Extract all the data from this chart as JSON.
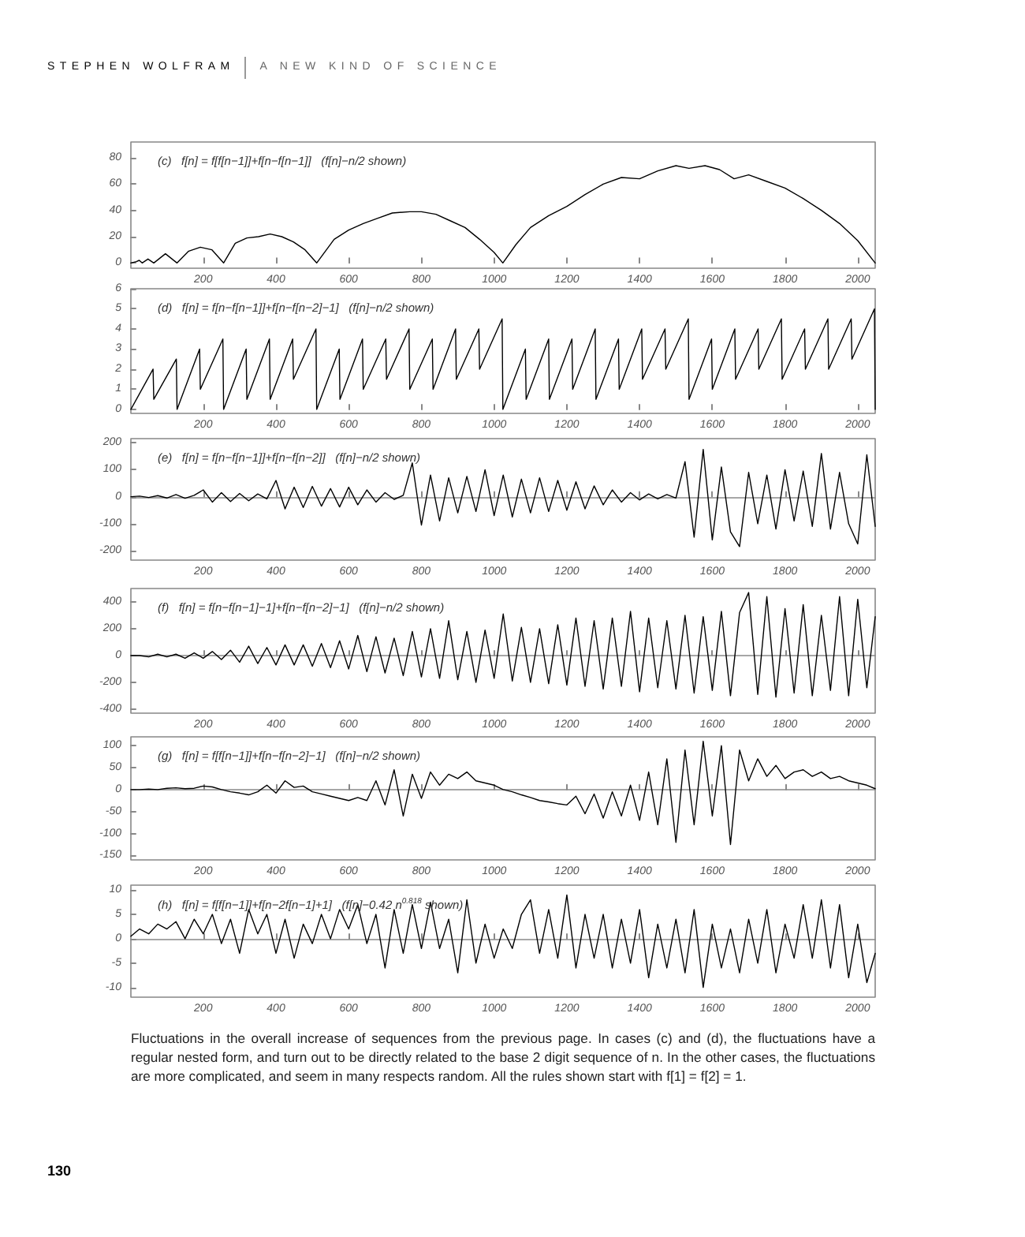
{
  "chart_data": [
    {
      "type": "line",
      "title": "(c)   f[n] = f[f[n−1]]+f[n−f[n−1]]   (f[n]−n/2 shown)",
      "annotations": [
        "STEPHEN WOLFRAM",
        "A NEW KIND OF SCIENCE"
      ],
      "color": "#000000",
      "marker": "none",
      "line_style": "solid",
      "grid": false,
      "xlim": [
        1,
        2048
      ],
      "xticks": [
        200,
        400,
        600,
        800,
        1000,
        1200,
        1400,
        1600,
        1800,
        2000
      ],
      "ylim": [
        -4,
        92
      ],
      "yticks": [
        0,
        20,
        40,
        60,
        80
      ],
      "x": [
        1,
        16,
        24,
        32,
        48,
        64,
        96,
        128,
        160,
        192,
        224,
        256,
        288,
        320,
        352,
        384,
        416,
        448,
        480,
        512,
        560,
        600,
        640,
        680,
        720,
        768,
        800,
        840,
        880,
        920,
        960,
        1000,
        1024,
        1060,
        1100,
        1150,
        1200,
        1250,
        1300,
        1350,
        1400,
        1450,
        1500,
        1536,
        1580,
        1620,
        1660,
        1700,
        1750,
        1800,
        1850,
        1900,
        1950,
        2000,
        2048
      ],
      "values": [
        0,
        1,
        2,
        0,
        3,
        0,
        7,
        0,
        9,
        12,
        10,
        0,
        15,
        19,
        20,
        22,
        20,
        16,
        10,
        0,
        18,
        25,
        30,
        34,
        38,
        39,
        39,
        37,
        32,
        27,
        18,
        8,
        0,
        14,
        27,
        36,
        43,
        52,
        60,
        65,
        64,
        70,
        74,
        72,
        74,
        71,
        64,
        67,
        62,
        57,
        49,
        40,
        30,
        17,
        0
      ]
    },
    {
      "type": "line",
      "title": "(d)   f[n] = f[n−f[n−1]]+f[n−f[n−2]−1]   (f[n]−n/2 shown)",
      "color": "#000000",
      "marker": "none",
      "line_style": "solid",
      "grid": false,
      "xlim": [
        1,
        2048
      ],
      "xticks": [
        200,
        400,
        600,
        800,
        1000,
        1200,
        1400,
        1600,
        1800,
        2000
      ],
      "ylim": [
        -0.2,
        6
      ],
      "yticks": [
        0,
        1,
        2,
        3,
        4,
        5,
        6
      ],
      "x": [
        1,
        62,
        64,
        126,
        128,
        190,
        192,
        254,
        256,
        318,
        320,
        382,
        384,
        446,
        448,
        510,
        512,
        574,
        576,
        638,
        640,
        702,
        704,
        766,
        768,
        830,
        832,
        894,
        896,
        958,
        960,
        1022,
        1024,
        1086,
        1088,
        1150,
        1152,
        1214,
        1216,
        1278,
        1280,
        1342,
        1344,
        1406,
        1408,
        1470,
        1472,
        1534,
        1536,
        1598,
        1600,
        1662,
        1664,
        1726,
        1728,
        1790,
        1792,
        1854,
        1856,
        1918,
        1920,
        1982,
        1984,
        2046,
        2048
      ],
      "values": [
        0,
        2,
        0.5,
        2.5,
        0,
        3,
        1,
        3.5,
        0,
        3,
        0.5,
        3.5,
        0.5,
        3.5,
        1.5,
        4,
        0,
        3,
        0.5,
        3.5,
        1,
        3.5,
        1.5,
        4,
        1,
        3.5,
        1,
        4,
        1.5,
        4,
        2,
        4.5,
        0,
        3,
        0.5,
        3.5,
        0.5,
        3.5,
        1,
        4,
        0.5,
        3.5,
        1,
        4,
        1.5,
        4,
        2,
        4.5,
        0.5,
        3.5,
        1,
        4,
        1.5,
        4,
        2,
        4.5,
        1.5,
        4,
        2,
        4.5,
        2,
        4.5,
        2.5,
        5,
        0
      ]
    },
    {
      "type": "line",
      "title": "(e)   f[n] = f[n−f[n−1]]+f[n−f[n−2]]   (f[n]−n/2 shown)",
      "color": "#000000",
      "marker": "none",
      "line_style": "solid",
      "grid": false,
      "xlim": [
        1,
        2048
      ],
      "xticks": [
        200,
        400,
        600,
        800,
        1000,
        1200,
        1400,
        1600,
        1800,
        2000
      ],
      "ylim": [
        -235,
        215
      ],
      "yticks": [
        -200,
        -100,
        0,
        100,
        200
      ],
      "ref_lines": [
        {
          "axis": "y",
          "value": 0,
          "color": "#888888"
        }
      ],
      "x": [
        1,
        25,
        50,
        75,
        100,
        125,
        150,
        175,
        200,
        225,
        250,
        275,
        300,
        325,
        350,
        375,
        400,
        425,
        450,
        475,
        500,
        525,
        550,
        575,
        600,
        625,
        650,
        675,
        700,
        725,
        750,
        775,
        800,
        825,
        850,
        875,
        900,
        925,
        950,
        975,
        1000,
        1025,
        1050,
        1075,
        1100,
        1125,
        1150,
        1175,
        1200,
        1225,
        1250,
        1275,
        1300,
        1325,
        1350,
        1375,
        1400,
        1425,
        1450,
        1475,
        1500,
        1525,
        1550,
        1575,
        1600,
        1625,
        1650,
        1675,
        1700,
        1725,
        1750,
        1775,
        1800,
        1825,
        1850,
        1875,
        1900,
        1925,
        1950,
        1975,
        2000,
        2025,
        2048
      ],
      "values": [
        0,
        2,
        -3,
        4,
        -5,
        8,
        -6,
        5,
        25,
        -20,
        15,
        -18,
        12,
        -15,
        10,
        -8,
        60,
        -45,
        35,
        -40,
        38,
        -35,
        30,
        -38,
        35,
        -30,
        25,
        -20,
        15,
        -10,
        5,
        125,
        -105,
        80,
        -90,
        70,
        -60,
        75,
        -55,
        100,
        -70,
        80,
        -75,
        65,
        -60,
        70,
        -55,
        60,
        -50,
        55,
        -45,
        40,
        -30,
        25,
        -20,
        15,
        -12,
        10,
        -8,
        8,
        -5,
        130,
        -150,
        175,
        -160,
        110,
        -130,
        -185,
        90,
        -100,
        80,
        -120,
        100,
        -90,
        95,
        -110,
        160,
        -120,
        90,
        -100,
        -175,
        155,
        -110
      ]
    },
    {
      "type": "line",
      "title": "(f)   f[n] = f[n−f[n−1]−1]+f[n−f[n−2]−1]   (f[n]−n/2 shown)",
      "color": "#000000",
      "marker": "none",
      "line_style": "solid",
      "grid": false,
      "xlim": [
        1,
        2048
      ],
      "xticks": [
        200,
        400,
        600,
        800,
        1000,
        1200,
        1400,
        1600,
        1800,
        2000
      ],
      "ylim": [
        -430,
        500
      ],
      "yticks": [
        -400,
        -200,
        0,
        200,
        400
      ],
      "ref_lines": [
        {
          "axis": "y",
          "value": 0,
          "color": "#888888"
        }
      ],
      "x": [
        1,
        25,
        50,
        75,
        100,
        125,
        150,
        175,
        200,
        225,
        250,
        275,
        300,
        325,
        350,
        375,
        400,
        425,
        450,
        475,
        500,
        525,
        550,
        575,
        600,
        625,
        650,
        675,
        700,
        725,
        750,
        775,
        800,
        825,
        850,
        875,
        900,
        925,
        950,
        975,
        1000,
        1025,
        1050,
        1075,
        1100,
        1125,
        1150,
        1175,
        1200,
        1225,
        1250,
        1275,
        1300,
        1325,
        1350,
        1375,
        1400,
        1425,
        1450,
        1475,
        1500,
        1525,
        1550,
        1575,
        1600,
        1625,
        1650,
        1675,
        1700,
        1725,
        1750,
        1775,
        1800,
        1825,
        1850,
        1875,
        1900,
        1925,
        1950,
        1975,
        2000,
        2025,
        2048
      ],
      "values": [
        0,
        0,
        -10,
        10,
        -10,
        10,
        -20,
        20,
        -20,
        30,
        -30,
        40,
        -50,
        70,
        -60,
        60,
        -70,
        80,
        -70,
        80,
        -80,
        90,
        -90,
        110,
        -100,
        150,
        -120,
        140,
        -130,
        130,
        -150,
        180,
        -160,
        200,
        -170,
        260,
        -180,
        180,
        -200,
        190,
        -170,
        310,
        -190,
        210,
        -200,
        200,
        -210,
        230,
        -220,
        280,
        -230,
        260,
        -250,
        280,
        -230,
        330,
        -270,
        280,
        -240,
        260,
        -250,
        300,
        -280,
        290,
        -260,
        330,
        -300,
        320,
        470,
        -290,
        440,
        -310,
        350,
        -280,
        380,
        -300,
        300,
        -260,
        440,
        -300,
        420,
        -240,
        290
      ]
    },
    {
      "type": "line",
      "title": "(g)   f[n] = f[f[n−1]]+f[n−f[n−2]−1]   (f[n]−n/2 shown)",
      "color": "#000000",
      "marker": "none",
      "line_style": "solid",
      "grid": false,
      "xlim": [
        1,
        2048
      ],
      "xticks": [
        200,
        400,
        600,
        800,
        1000,
        1200,
        1400,
        1600,
        1800,
        2000
      ],
      "ylim": [
        -160,
        120
      ],
      "yticks": [
        -150,
        -100,
        -50,
        0,
        50,
        100
      ],
      "ref_lines": [
        {
          "axis": "y",
          "value": 0,
          "color": "#888888"
        }
      ],
      "x": [
        1,
        25,
        50,
        75,
        100,
        125,
        150,
        175,
        200,
        225,
        250,
        275,
        300,
        325,
        350,
        375,
        400,
        425,
        450,
        475,
        500,
        525,
        550,
        575,
        600,
        625,
        650,
        675,
        700,
        725,
        750,
        775,
        800,
        825,
        850,
        875,
        900,
        925,
        950,
        975,
        1000,
        1025,
        1050,
        1075,
        1100,
        1125,
        1150,
        1175,
        1200,
        1225,
        1250,
        1275,
        1300,
        1325,
        1350,
        1375,
        1400,
        1425,
        1450,
        1475,
        1500,
        1525,
        1550,
        1575,
        1600,
        1625,
        1650,
        1675,
        1700,
        1725,
        1750,
        1775,
        1800,
        1825,
        1850,
        1875,
        1900,
        1925,
        1950,
        1975,
        2000,
        2025,
        2048
      ],
      "values": [
        0,
        0,
        1,
        0,
        3,
        4,
        2,
        3,
        8,
        6,
        0,
        -5,
        -8,
        -12,
        -5,
        10,
        -8,
        20,
        5,
        8,
        -5,
        -10,
        -15,
        -20,
        -25,
        -18,
        -25,
        20,
        -35,
        45,
        -60,
        35,
        -20,
        40,
        10,
        35,
        25,
        40,
        20,
        15,
        10,
        0,
        -5,
        -12,
        -18,
        -25,
        -28,
        -32,
        -35,
        -15,
        -55,
        -10,
        -65,
        -5,
        -60,
        10,
        -70,
        40,
        -80,
        70,
        -120,
        90,
        -80,
        110,
        -60,
        100,
        -125,
        90,
        20,
        70,
        30,
        55,
        25,
        40,
        45,
        30,
        40,
        25,
        30,
        20,
        15,
        10,
        2
      ]
    },
    {
      "type": "line",
      "title": "(h)   f[n] = f[f[n−1]]+f[n−2f[n−1]+1]   (f[n]−0.42 n$^{0.818}$ shown)",
      "annotations": [
        "Fluctuations in the overall increase of sequences from the previous page. In cases (c) and (d), the fluctuations have a regular nested form, and turn out to be directly related to the base 2 digit sequence of n. In the other cases, the fluctuations are more complicated, and seem in many respects random. All the rules shown start with f[1] = f[2] = 1.",
        "130"
      ],
      "color": "#000000",
      "marker": "none",
      "line_style": "solid",
      "grid": false,
      "xlim": [
        1,
        2048
      ],
      "xticks": [
        200,
        400,
        600,
        800,
        1000,
        1200,
        1400,
        1600,
        1800,
        2000
      ],
      "ylim": [
        -12,
        11
      ],
      "yticks": [
        -10,
        -5,
        0,
        5,
        10
      ],
      "ref_lines": [
        {
          "axis": "y",
          "value": 0,
          "color": "#888888"
        }
      ],
      "x": [
        1,
        25,
        50,
        75,
        100,
        125,
        150,
        175,
        200,
        225,
        250,
        275,
        300,
        325,
        350,
        375,
        400,
        425,
        450,
        475,
        500,
        525,
        550,
        575,
        600,
        625,
        650,
        675,
        700,
        725,
        750,
        775,
        800,
        825,
        850,
        875,
        900,
        925,
        950,
        975,
        1000,
        1025,
        1050,
        1075,
        1100,
        1125,
        1150,
        1175,
        1200,
        1225,
        1250,
        1275,
        1300,
        1325,
        1350,
        1375,
        1400,
        1425,
        1450,
        1475,
        1500,
        1525,
        1550,
        1575,
        1600,
        1625,
        1650,
        1675,
        1700,
        1725,
        1750,
        1775,
        1800,
        1825,
        1850,
        1875,
        1900,
        1925,
        1950,
        1975,
        2000,
        2025,
        2048
      ],
      "values": [
        0.5,
        2,
        1,
        3,
        2,
        3.5,
        0,
        4,
        1,
        5,
        -1,
        4,
        -3,
        6,
        1,
        5,
        -3,
        4,
        -4,
        3,
        -1,
        5,
        0,
        6,
        2,
        7,
        -1,
        5,
        -6,
        6,
        -3,
        7,
        -2,
        7.5,
        -2,
        4,
        -7,
        8,
        -5,
        3,
        -4,
        2,
        -2,
        5,
        8,
        -3,
        6,
        -4,
        9,
        -6,
        5,
        -4,
        5,
        -6,
        4,
        -5,
        6,
        -8,
        3,
        -6,
        4,
        -7,
        6,
        -10,
        3,
        -6,
        2,
        -7,
        4,
        -5,
        6,
        -7,
        3,
        -4,
        7,
        -4,
        8,
        -6,
        7,
        -8,
        3,
        -9,
        -3
      ]
    }
  ]
}
